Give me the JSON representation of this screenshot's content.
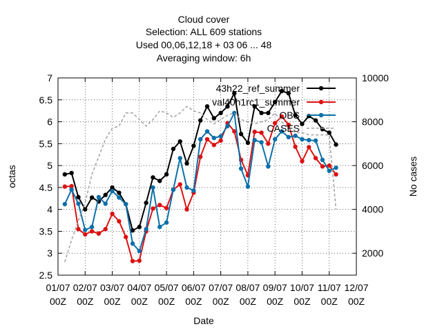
{
  "chart_data": {
    "type": "line",
    "title_lines": [
      "Cloud cover",
      "Selection: ALL    609 stations",
      "Used  00,06,12,18  + 03 06 ... 48",
      "Averaging window:  6h"
    ],
    "xlabel": "Date",
    "ylabel": "octas",
    "y2label": "No cases",
    "ylim": [
      2.5,
      7
    ],
    "y2lim": [
      1000,
      10000
    ],
    "xlim": [
      0,
      11
    ],
    "x_ticks": [
      {
        "d": "01/07",
        "h": "00Z"
      },
      {
        "d": "02/07",
        "h": "00Z"
      },
      {
        "d": "03/07",
        "h": "00Z"
      },
      {
        "d": "04/07",
        "h": "00Z"
      },
      {
        "d": "05/07",
        "h": "00Z"
      },
      {
        "d": "06/07",
        "h": "00Z"
      },
      {
        "d": "07/07",
        "h": "00Z"
      },
      {
        "d": "08/07",
        "h": "00Z"
      },
      {
        "d": "09/07",
        "h": "00Z"
      },
      {
        "d": "10/07",
        "h": "00Z"
      },
      {
        "d": "11/07",
        "h": "00Z"
      },
      {
        "d": "12/07",
        "h": "00Z"
      }
    ],
    "y_ticks": [
      "2.5",
      "3",
      "3.5",
      "4",
      "4.5",
      "5",
      "5.5",
      "6",
      "6.5",
      "7"
    ],
    "y2_ticks": [
      "2000",
      "4000",
      "6000",
      "8000",
      "10000"
    ],
    "legend_position": "top-right",
    "x": [
      0.25,
      0.5,
      0.75,
      1,
      1.25,
      1.5,
      1.75,
      2,
      2.25,
      2.5,
      2.75,
      3,
      3.25,
      3.5,
      3.75,
      4,
      4.25,
      4.5,
      4.75,
      5,
      5.25,
      5.5,
      5.75,
      6,
      6.25,
      6.5,
      6.75,
      7,
      7.25,
      7.5,
      7.75,
      8,
      8.25,
      8.5,
      8.75,
      9,
      9.25,
      9.5,
      9.75,
      10,
      10.25,
      10.5,
      10.75
    ],
    "series": [
      {
        "name": "43h22 ref_summer",
        "legend_text": "43h22_ref_summer",
        "color": "#000000",
        "axis": "left",
        "values": [
          4.8,
          4.83,
          4.28,
          4.0,
          4.27,
          4.18,
          4.33,
          4.5,
          4.38,
          4.12,
          3.52,
          3.6,
          4.15,
          4.73,
          4.65,
          4.8,
          5.38,
          5.55,
          5.05,
          5.45,
          6.03,
          6.35,
          6.08,
          6.2,
          6.35,
          6.65,
          5.72,
          5.52,
          6.35,
          6.2,
          6.2,
          6.45,
          6.7,
          6.65,
          6.15,
          5.95,
          6.13,
          6.03,
          5.83,
          5.75,
          5.48,
          null,
          null
        ]
      },
      {
        "name": "val40h1rc1_summer",
        "legend_text": "val40h1rc1_summer",
        "color": "#dd1111",
        "axis": "left",
        "values": [
          4.52,
          4.53,
          3.55,
          3.43,
          3.5,
          3.45,
          3.55,
          3.9,
          3.73,
          3.37,
          2.82,
          2.83,
          3.5,
          4.02,
          4.1,
          4.03,
          4.45,
          4.57,
          4.0,
          4.38,
          5.2,
          5.6,
          5.47,
          5.57,
          5.97,
          5.78,
          5.13,
          4.78,
          5.77,
          5.75,
          5.5,
          5.97,
          6.12,
          5.93,
          5.43,
          5.1,
          5.42,
          5.17,
          4.98,
          5.0,
          4.8,
          null,
          null
        ]
      },
      {
        "name": "OBS",
        "legend_text": "OBS",
        "color": "#0a6faa",
        "axis": "left",
        "values": [
          4.12,
          4.45,
          4.13,
          3.53,
          3.6,
          4.28,
          4.13,
          4.42,
          4.27,
          4.12,
          3.22,
          3.05,
          3.55,
          4.5,
          3.6,
          3.7,
          4.45,
          5.17,
          4.5,
          4.43,
          5.6,
          5.78,
          5.63,
          5.67,
          5.9,
          6.2,
          4.93,
          4.52,
          5.58,
          5.53,
          4.98,
          5.6,
          5.78,
          5.65,
          5.68,
          5.6,
          5.58,
          5.57,
          5.13,
          4.88,
          4.95,
          null,
          null
        ]
      },
      {
        "name": "CASES",
        "legend_text": "CASES",
        "color": "#a0a0a0",
        "axis": "right",
        "values": [
          1600,
          2600,
          3500,
          4300,
          5600,
          6400,
          7200,
          7700,
          7800,
          8400,
          8400,
          8100,
          7800,
          8100,
          8500,
          8400,
          8200,
          8400,
          8700,
          8500,
          8400,
          8100,
          7900,
          8100,
          8300,
          8400,
          8100,
          8000,
          7900,
          8000,
          8100,
          8400,
          8000,
          7700,
          7500,
          7500,
          7400,
          7400,
          7400,
          7400,
          4000,
          null,
          null
        ]
      }
    ]
  }
}
